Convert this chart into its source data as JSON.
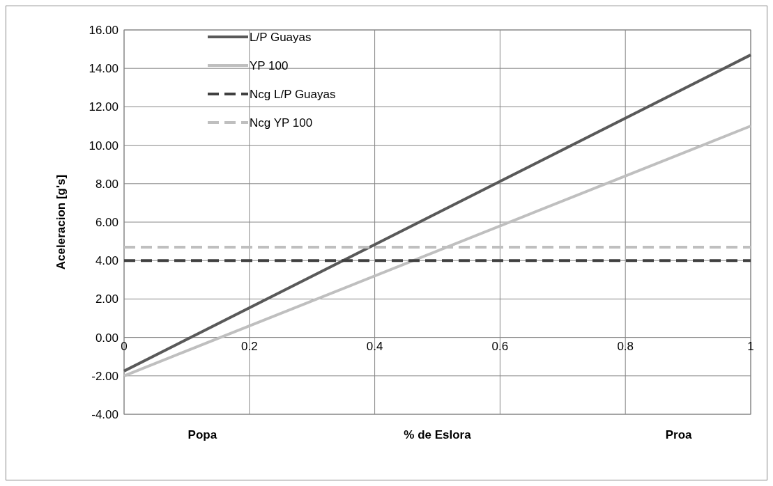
{
  "chart_data": {
    "type": "line",
    "ylabel": "Aceleracion [g's]",
    "xlabel": "% de Eslora",
    "annotations": [
      "Popa",
      "Proa"
    ],
    "x": [
      0,
      1
    ],
    "series": [
      {
        "name": "L/P Guayas",
        "color": "#595959",
        "values": [
          -1.75,
          14.7
        ],
        "line_style": "solid"
      },
      {
        "name": "YP 100",
        "color": "#bfbfbf",
        "values": [
          -2.0,
          11.0
        ],
        "line_style": "solid"
      },
      {
        "name": "Ncg L/P Guayas",
        "color": "#404040",
        "values": [
          4.0,
          4.0
        ],
        "line_style": "dashed"
      },
      {
        "name": "Ncg YP 100",
        "color": "#bfbfbf",
        "values": [
          4.7,
          4.7
        ],
        "line_style": "dashed"
      }
    ],
    "xlim": [
      0,
      1
    ],
    "xticks": [
      0,
      0.2,
      0.4,
      0.6,
      0.8,
      1
    ],
    "ylim": [
      -4,
      16
    ],
    "yticks": [
      {
        "value": -4,
        "label": "-4.00"
      },
      {
        "value": -2,
        "label": "-2.00"
      },
      {
        "value": 0,
        "label": "0.00"
      },
      {
        "value": 2,
        "label": "2.00"
      },
      {
        "value": 4,
        "label": "4.00"
      },
      {
        "value": 6,
        "label": "6.00"
      },
      {
        "value": 8,
        "label": "8.00"
      },
      {
        "value": 10,
        "label": "10.00"
      },
      {
        "value": 12,
        "label": "12.00"
      },
      {
        "value": 14,
        "label": "14.00"
      },
      {
        "value": 16,
        "label": "16.00"
      }
    ],
    "grid": true,
    "legend": "top left"
  }
}
